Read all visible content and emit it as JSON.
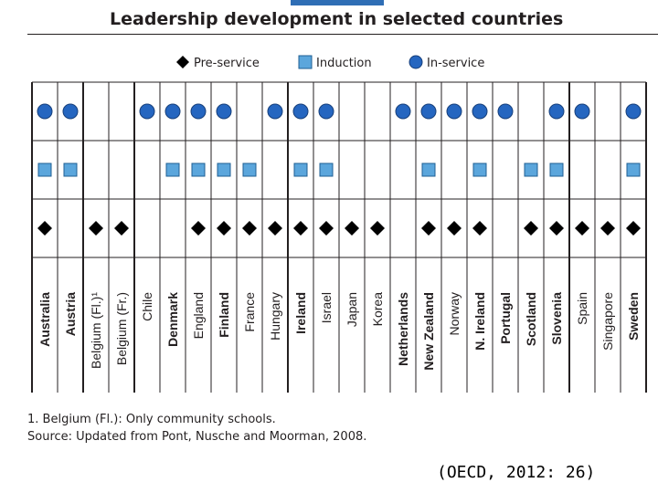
{
  "header": {
    "title": "Leadership development in selected countries"
  },
  "chart_data": {
    "type": "dot-matrix",
    "title": "Leadership development in selected countries",
    "legend": [
      {
        "key": "pre_service",
        "label": "Pre-service",
        "marker": "diamond",
        "color": "#000000"
      },
      {
        "key": "induction",
        "label": "Induction",
        "marker": "square",
        "color": "#5ba6dc"
      },
      {
        "key": "in_service",
        "label": "In-service",
        "marker": "circle",
        "color": "#2566c0"
      }
    ],
    "legend_position": "top",
    "rows": [
      "in_service",
      "induction",
      "pre_service"
    ],
    "countries": [
      {
        "name": "Australia",
        "label": "Australia",
        "bold": true,
        "pre_service": true,
        "induction": true,
        "in_service": true
      },
      {
        "name": "Austria",
        "label": "Austria",
        "bold": true,
        "pre_service": false,
        "induction": true,
        "in_service": true
      },
      {
        "name": "Belgium (Fl.)",
        "label": "Belgium (Fl.)¹",
        "bold": false,
        "pre_service": true,
        "induction": false,
        "in_service": false
      },
      {
        "name": "Belgium (Fr.)",
        "label": "Belgium (Fr.)",
        "bold": false,
        "pre_service": true,
        "induction": false,
        "in_service": false
      },
      {
        "name": "Chile",
        "label": "Chile",
        "bold": false,
        "pre_service": false,
        "induction": false,
        "in_service": true
      },
      {
        "name": "Denmark",
        "label": "Denmark",
        "bold": true,
        "pre_service": false,
        "induction": true,
        "in_service": true
      },
      {
        "name": "England",
        "label": "England",
        "bold": false,
        "pre_service": true,
        "induction": true,
        "in_service": true
      },
      {
        "name": "Finland",
        "label": "Finland",
        "bold": true,
        "pre_service": true,
        "induction": true,
        "in_service": true
      },
      {
        "name": "France",
        "label": "France",
        "bold": false,
        "pre_service": true,
        "induction": true,
        "in_service": false
      },
      {
        "name": "Hungary",
        "label": "Hungary",
        "bold": false,
        "pre_service": true,
        "induction": false,
        "in_service": true
      },
      {
        "name": "Ireland",
        "label": "Ireland",
        "bold": true,
        "pre_service": true,
        "induction": true,
        "in_service": true
      },
      {
        "name": "Israel",
        "label": "Israel",
        "bold": false,
        "pre_service": true,
        "induction": true,
        "in_service": true
      },
      {
        "name": "Japan",
        "label": "Japan",
        "bold": false,
        "pre_service": true,
        "induction": false,
        "in_service": false
      },
      {
        "name": "Korea",
        "label": "Korea",
        "bold": false,
        "pre_service": true,
        "induction": false,
        "in_service": false
      },
      {
        "name": "Netherlands",
        "label": "Netherlands",
        "bold": true,
        "pre_service": false,
        "induction": false,
        "in_service": true
      },
      {
        "name": "New Zealand",
        "label": "New Zealand",
        "bold": true,
        "pre_service": true,
        "induction": true,
        "in_service": true
      },
      {
        "name": "Norway",
        "label": "Norway",
        "bold": false,
        "pre_service": true,
        "induction": false,
        "in_service": true
      },
      {
        "name": "N. Ireland",
        "label": "N. Ireland",
        "bold": true,
        "pre_service": true,
        "induction": true,
        "in_service": true
      },
      {
        "name": "Portugal",
        "label": "Portugal",
        "bold": true,
        "pre_service": false,
        "induction": false,
        "in_service": true
      },
      {
        "name": "Scotland",
        "label": "Scotland",
        "bold": true,
        "pre_service": true,
        "induction": true,
        "in_service": false
      },
      {
        "name": "Slovenia",
        "label": "Slovenia",
        "bold": true,
        "pre_service": true,
        "induction": true,
        "in_service": true
      },
      {
        "name": "Spain",
        "label": "Spain",
        "bold": false,
        "pre_service": true,
        "induction": false,
        "in_service": true
      },
      {
        "name": "Singapore",
        "label": "Singapore",
        "bold": false,
        "pre_service": true,
        "induction": false,
        "in_service": false
      },
      {
        "name": "Sweden",
        "label": "Sweden",
        "bold": true,
        "pre_service": true,
        "induction": true,
        "in_service": true
      }
    ],
    "group_separators_after": [
      "Austria",
      "Belgium (Fr.)",
      "Hungary",
      "Slovenia"
    ]
  },
  "notes": {
    "footnote": "1. Belgium (Fl.): Only community schools.",
    "source": "Source: Updated from Pont, Nusche and Moorman, 2008."
  },
  "citation": "(OECD, 2012: 26)",
  "colors": {
    "text": "#231f20",
    "grid": "#231f20",
    "diamond": "#000000",
    "square_fill": "#5ba6dc",
    "square_stroke": "#1f5f93",
    "circle_fill": "#2566c0",
    "circle_stroke": "#173f7a",
    "accent_tab": "#2f6eb5"
  }
}
